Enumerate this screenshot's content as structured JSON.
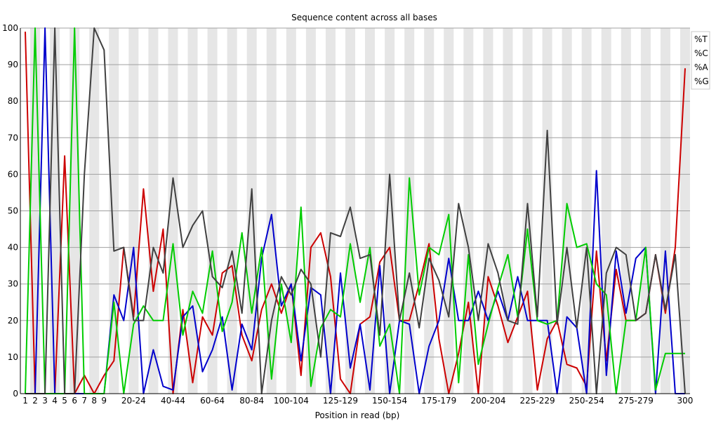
{
  "chart_data": {
    "type": "line",
    "title": "Sequence content across all bases",
    "xlabel": "Position in read (bp)",
    "ylabel": "",
    "ylim": [
      0,
      100
    ],
    "y_ticks": [
      "0",
      "10",
      "20",
      "30",
      "40",
      "50",
      "60",
      "70",
      "80",
      "90",
      "100"
    ],
    "categories": [
      "1",
      "2",
      "3",
      "4",
      "5",
      "6",
      "7",
      "8",
      "9",
      "10-14",
      "15-19",
      "20-24",
      "25-29",
      "30-34",
      "35-39",
      "40-44",
      "45-49",
      "50-54",
      "55-59",
      "60-64",
      "65-69",
      "70-74",
      "75-79",
      "80-84",
      "85-89",
      "90-94",
      "95-99",
      "100-104",
      "105-109",
      "110-114",
      "115-119",
      "120-124",
      "125-129",
      "130-134",
      "135-139",
      "140-144",
      "145-149",
      "150-154",
      "155-159",
      "160-164",
      "165-169",
      "170-174",
      "175-179",
      "180-184",
      "185-189",
      "190-194",
      "195-199",
      "200-204",
      "205-209",
      "210-214",
      "215-219",
      "220-224",
      "225-229",
      "230-234",
      "235-239",
      "240-244",
      "245-249",
      "250-254",
      "255-259",
      "260-264",
      "265-269",
      "270-274",
      "275-279",
      "280-284",
      "285-289",
      "290-294",
      "295-299",
      "300"
    ],
    "x_tick_labels": [
      "1",
      "2",
      "3",
      "4",
      "5",
      "6",
      "7",
      "8",
      "9",
      "20-24",
      "40-44",
      "60-64",
      "80-84",
      "100-104",
      "125-129",
      "150-154",
      "175-179",
      "200-204",
      "225-229",
      "250-254",
      "275-279",
      "300"
    ],
    "series": [
      {
        "name": "%T",
        "color": "#cc0000",
        "values": [
          99,
          0,
          0,
          0,
          65,
          0,
          5,
          0,
          5,
          9,
          40,
          21,
          56,
          28,
          45,
          0,
          23,
          3,
          21,
          16,
          33,
          35,
          16,
          9,
          23,
          30,
          22,
          30,
          5,
          40,
          44,
          32,
          4,
          0,
          19,
          21,
          36,
          40,
          20,
          20,
          30,
          41,
          15,
          0,
          11,
          25,
          0,
          32,
          24,
          14,
          21,
          28,
          1,
          15,
          20,
          8,
          7,
          2,
          39,
          9,
          34,
          20,
          20,
          22,
          38,
          22,
          40,
          89
        ]
      },
      {
        "name": "%C",
        "color": "#0000cc",
        "values": [
          0,
          0,
          100,
          0,
          0,
          0,
          0,
          0,
          0,
          27,
          20,
          40,
          0,
          12,
          2,
          1,
          21,
          24,
          6,
          12,
          21,
          1,
          19,
          12,
          37,
          49,
          24,
          30,
          9,
          29,
          27,
          0,
          33,
          7,
          19,
          1,
          35,
          0,
          20,
          19,
          0,
          13,
          20,
          37,
          20,
          20,
          28,
          20,
          28,
          20,
          32,
          20,
          20,
          20,
          0,
          21,
          18,
          0,
          61,
          5,
          39,
          22,
          37,
          40,
          0,
          39,
          0,
          0
        ]
      },
      {
        "name": "%A",
        "color": "#00cc00",
        "values": [
          0,
          100,
          0,
          0,
          0,
          100,
          0,
          0,
          0,
          25,
          0,
          19,
          24,
          20,
          20,
          41,
          16,
          28,
          22,
          39,
          17,
          25,
          44,
          22,
          40,
          4,
          30,
          14,
          51,
          2,
          18,
          23,
          21,
          41,
          25,
          40,
          13,
          19,
          0,
          59,
          27,
          40,
          38,
          49,
          3,
          38,
          8,
          19,
          29,
          38,
          21,
          45,
          20,
          19,
          20,
          52,
          40,
          41,
          30,
          27,
          0,
          20,
          20,
          40,
          1,
          11,
          11,
          11
        ]
      },
      {
        "name": "%G",
        "color": "#404040",
        "values": [
          0,
          0,
          0,
          100,
          0,
          0,
          60,
          100,
          94,
          39,
          40,
          20,
          20,
          40,
          33,
          59,
          40,
          46,
          50,
          32,
          29,
          39,
          22,
          56,
          0,
          20,
          32,
          27,
          34,
          30,
          10,
          44,
          43,
          51,
          37,
          38,
          16,
          60,
          20,
          33,
          18,
          37,
          31,
          21,
          52,
          40,
          20,
          41,
          33,
          20,
          19,
          52,
          21,
          72,
          19,
          40,
          18,
          40,
          0,
          33,
          40,
          38,
          20,
          22,
          38,
          23,
          38,
          0
        ]
      }
    ],
    "grid": true,
    "legend": "top-right"
  }
}
